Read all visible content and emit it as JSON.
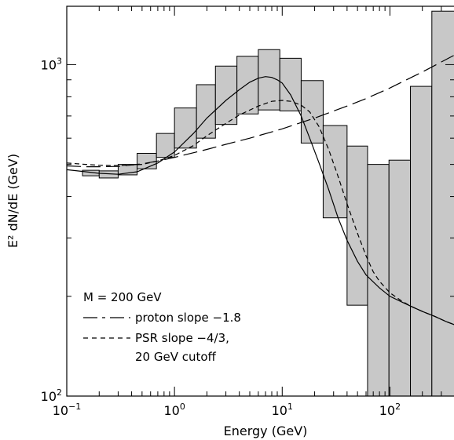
{
  "chart_data": {
    "type": "bar",
    "xscale": "log",
    "yscale": "log",
    "xlim": [
      0.1,
      400
    ],
    "ylim": [
      100,
      1500
    ],
    "xlabel": "Energy (GeV)",
    "ylabel": "E² dN/dE (GeV)",
    "x_tick_labels": [
      {
        "value": 0.1,
        "base": "10",
        "exp": "−1"
      },
      {
        "value": 1,
        "base": "10",
        "exp": "0"
      },
      {
        "value": 10,
        "base": "10",
        "exp": "1"
      },
      {
        "value": 100,
        "base": "10",
        "exp": "2"
      }
    ],
    "y_tick_labels": [
      {
        "value": 100,
        "base": "10",
        "exp": "2"
      },
      {
        "value": 1000,
        "base": "10",
        "exp": "3"
      }
    ],
    "error_boxes": [
      {
        "x0": 0.14,
        "x1": 0.2,
        "ylo": 462,
        "yhi": 480
      },
      {
        "x0": 0.2,
        "x1": 0.3,
        "ylo": 455,
        "yhi": 478
      },
      {
        "x0": 0.3,
        "x1": 0.45,
        "ylo": 465,
        "yhi": 500
      },
      {
        "x0": 0.45,
        "x1": 0.68,
        "ylo": 485,
        "yhi": 540
      },
      {
        "x0": 0.68,
        "x1": 1.0,
        "ylo": 525,
        "yhi": 620
      },
      {
        "x0": 1.0,
        "x1": 1.6,
        "ylo": 560,
        "yhi": 740
      },
      {
        "x0": 1.6,
        "x1": 2.4,
        "ylo": 600,
        "yhi": 870
      },
      {
        "x0": 2.4,
        "x1": 3.8,
        "ylo": 660,
        "yhi": 990
      },
      {
        "x0": 3.8,
        "x1": 6.0,
        "ylo": 710,
        "yhi": 1060
      },
      {
        "x0": 6.0,
        "x1": 9.5,
        "ylo": 730,
        "yhi": 1110
      },
      {
        "x0": 9.5,
        "x1": 15,
        "ylo": 725,
        "yhi": 1045
      },
      {
        "x0": 15,
        "x1": 24,
        "ylo": 580,
        "yhi": 895
      },
      {
        "x0": 24,
        "x1": 40,
        "ylo": 345,
        "yhi": 655
      },
      {
        "x0": 40,
        "x1": 62,
        "ylo": 188,
        "yhi": 568
      },
      {
        "x0": 62,
        "x1": 98,
        "ylo": 100,
        "yhi": 500
      },
      {
        "x0": 98,
        "x1": 155,
        "ylo": 100,
        "yhi": 515
      },
      {
        "x0": 155,
        "x1": 245,
        "ylo": 100,
        "yhi": 860
      },
      {
        "x0": 245,
        "x1": 400,
        "ylo": 100,
        "yhi": 1450
      }
    ],
    "series": [
      {
        "name": "M = 200 GeV",
        "style": "solid",
        "x": [
          0.1,
          0.15,
          0.2,
          0.3,
          0.45,
          0.7,
          1,
          1.5,
          2,
          3,
          4,
          5,
          6,
          7,
          8,
          9,
          10,
          12,
          15,
          18,
          22,
          27,
          33,
          40,
          50,
          60,
          80,
          100,
          130,
          160,
          200,
          260,
          330,
          400
        ],
        "y": [
          482,
          475,
          470,
          467,
          475,
          505,
          545,
          620,
          690,
          780,
          840,
          885,
          910,
          920,
          915,
          900,
          880,
          810,
          700,
          600,
          505,
          420,
          345,
          295,
          255,
          232,
          212,
          200,
          192,
          186,
          180,
          174,
          168,
          164
        ]
      },
      {
        "name": "proton slope −1.8",
        "style": "long-dash",
        "x": [
          0.1,
          0.15,
          0.2,
          0.3,
          0.5,
          0.7,
          1,
          2,
          3,
          5,
          10,
          20,
          40,
          60,
          100,
          200,
          400
        ],
        "y": [
          495,
          492,
          492,
          493,
          502,
          512,
          525,
          555,
          575,
          600,
          640,
          690,
          750,
          790,
          850,
          950,
          1070
        ]
      },
      {
        "name": "PSR slope −4/3,",
        "name_line2": "20 GeV cutoff",
        "style": "short-dash",
        "x": [
          0.1,
          0.15,
          0.2,
          0.3,
          0.5,
          0.7,
          1,
          1.5,
          2,
          3,
          4,
          6,
          8,
          10,
          12,
          15,
          18,
          22,
          27,
          33,
          40,
          50,
          60,
          70,
          80,
          100,
          130,
          160,
          200,
          260,
          330,
          400
        ],
        "y": [
          505,
          500,
          497,
          496,
          500,
          512,
          532,
          570,
          610,
          665,
          705,
          750,
          775,
          780,
          775,
          755,
          720,
          650,
          555,
          460,
          380,
          310,
          265,
          237,
          222,
          205,
          193,
          186,
          180,
          174,
          168,
          164
        ]
      }
    ],
    "legend": {
      "placement": "bottom-left",
      "title": "M = 200 GeV",
      "entries": [
        {
          "label": "proton slope −1.8",
          "style": "long-dash"
        },
        {
          "label": "PSR slope −4/3,",
          "label2": "20 GeV cutoff",
          "style": "short-dash"
        }
      ]
    },
    "grid": false
  }
}
